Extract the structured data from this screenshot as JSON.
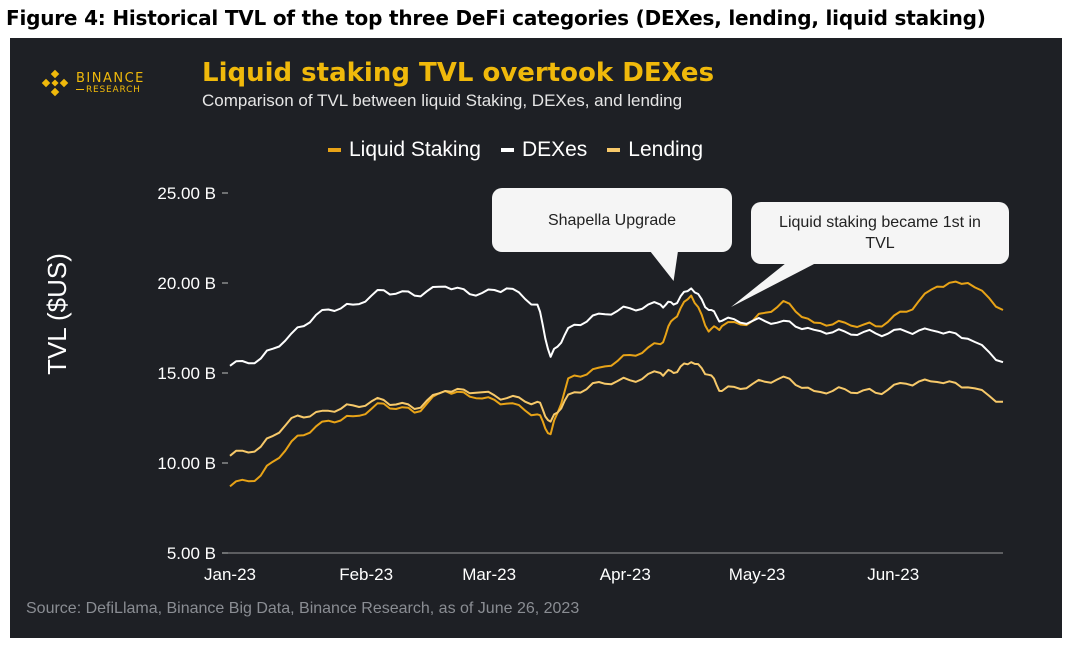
{
  "figure_title": "Figure 4: Historical TVL of the top three DeFi categories (DEXes, lending, liquid staking)",
  "brand": {
    "name": "BINANCE",
    "sub": "RESEARCH",
    "icon": "binance-logo-icon"
  },
  "headline": "Liquid staking TVL overtook DEXes",
  "subheadline": "Comparison of TVL between liquid Staking, DEXes, and lending",
  "source": "Source: DefiLlama, Binance Big Data, Binance Research, as of June 26, 2023",
  "colors": {
    "liquid_staking": "#e8a317",
    "dexes": "#ffffff",
    "lending": "#f7c96a",
    "background": "#1e2025"
  },
  "chart_data": {
    "type": "line",
    "title": "Liquid staking TVL overtook DEXes",
    "subtitle": "Comparison of TVL between liquid Staking, DEXes, and lending",
    "ylabel": "TVL ($US)",
    "xlabel": "",
    "ylim": [
      5,
      25
    ],
    "yticks": [
      "5.00 B",
      "10.00 B",
      "15.00 B",
      "20.00 B",
      "25.00 B"
    ],
    "xticks": [
      "Jan-23",
      "Feb-23",
      "Mar-23",
      "Apr-23",
      "May-23",
      "Jun-23"
    ],
    "x_range": [
      "2023-01-01",
      "2023-06-26"
    ],
    "legend_position": "top",
    "grid": false,
    "annotations": [
      {
        "text": "Shapella Upgrade",
        "date": "2023-04-12",
        "value": 19.0
      },
      {
        "text": "Liquid staking became 1st in TVL",
        "date": "2023-04-26",
        "value": 18.0
      }
    ],
    "series": [
      {
        "name": "Liquid Staking",
        "x": [
          "2023-01-01",
          "2023-01-08",
          "2023-01-15",
          "2023-01-22",
          "2023-01-29",
          "2023-02-05",
          "2023-02-12",
          "2023-02-19",
          "2023-02-26",
          "2023-03-05",
          "2023-03-12",
          "2023-03-15",
          "2023-03-19",
          "2023-03-26",
          "2023-04-02",
          "2023-04-09",
          "2023-04-12",
          "2023-04-16",
          "2023-04-20",
          "2023-04-23",
          "2023-04-30",
          "2023-05-07",
          "2023-05-14",
          "2023-05-21",
          "2023-05-28",
          "2023-06-04",
          "2023-06-11",
          "2023-06-18",
          "2023-06-26"
        ],
        "y": [
          8.7,
          9.3,
          11.2,
          12.3,
          12.6,
          13.3,
          12.8,
          14.0,
          13.6,
          13.3,
          12.7,
          11.6,
          14.7,
          15.3,
          16.0,
          16.6,
          18.0,
          19.3,
          17.3,
          17.6,
          17.9,
          19.0,
          17.8,
          17.8,
          17.6,
          18.4,
          19.8,
          20.0,
          18.5
        ]
      },
      {
        "name": "DEXes",
        "x": [
          "2023-01-01",
          "2023-01-08",
          "2023-01-15",
          "2023-01-22",
          "2023-01-29",
          "2023-02-05",
          "2023-02-12",
          "2023-02-19",
          "2023-02-26",
          "2023-03-05",
          "2023-03-12",
          "2023-03-15",
          "2023-03-19",
          "2023-03-26",
          "2023-04-02",
          "2023-04-09",
          "2023-04-12",
          "2023-04-16",
          "2023-04-20",
          "2023-04-23",
          "2023-04-30",
          "2023-05-07",
          "2023-05-14",
          "2023-05-21",
          "2023-05-28",
          "2023-06-04",
          "2023-06-11",
          "2023-06-18",
          "2023-06-26"
        ],
        "y": [
          15.4,
          15.8,
          17.2,
          18.5,
          18.8,
          19.6,
          19.3,
          19.8,
          19.3,
          19.7,
          18.8,
          15.9,
          17.5,
          18.3,
          18.6,
          18.8,
          18.8,
          19.7,
          18.5,
          17.9,
          17.9,
          17.9,
          17.4,
          17.3,
          17.2,
          17.3,
          17.3,
          16.9,
          15.6
        ]
      },
      {
        "name": "Lending",
        "x": [
          "2023-01-01",
          "2023-01-08",
          "2023-01-15",
          "2023-01-22",
          "2023-01-29",
          "2023-02-05",
          "2023-02-12",
          "2023-02-19",
          "2023-02-26",
          "2023-03-05",
          "2023-03-12",
          "2023-03-15",
          "2023-03-19",
          "2023-03-26",
          "2023-04-02",
          "2023-04-09",
          "2023-04-12",
          "2023-04-16",
          "2023-04-20",
          "2023-04-23",
          "2023-04-30",
          "2023-05-07",
          "2023-05-14",
          "2023-05-21",
          "2023-05-28",
          "2023-06-04",
          "2023-06-11",
          "2023-06-18",
          "2023-06-26"
        ],
        "y": [
          10.4,
          10.9,
          12.5,
          12.9,
          13.2,
          13.5,
          13.0,
          14.0,
          13.9,
          13.6,
          13.4,
          12.3,
          13.8,
          14.5,
          14.6,
          15.0,
          15.0,
          15.6,
          14.9,
          14.0,
          14.4,
          14.8,
          14.0,
          14.1,
          13.9,
          14.4,
          14.5,
          14.2,
          13.4
        ]
      }
    ]
  }
}
